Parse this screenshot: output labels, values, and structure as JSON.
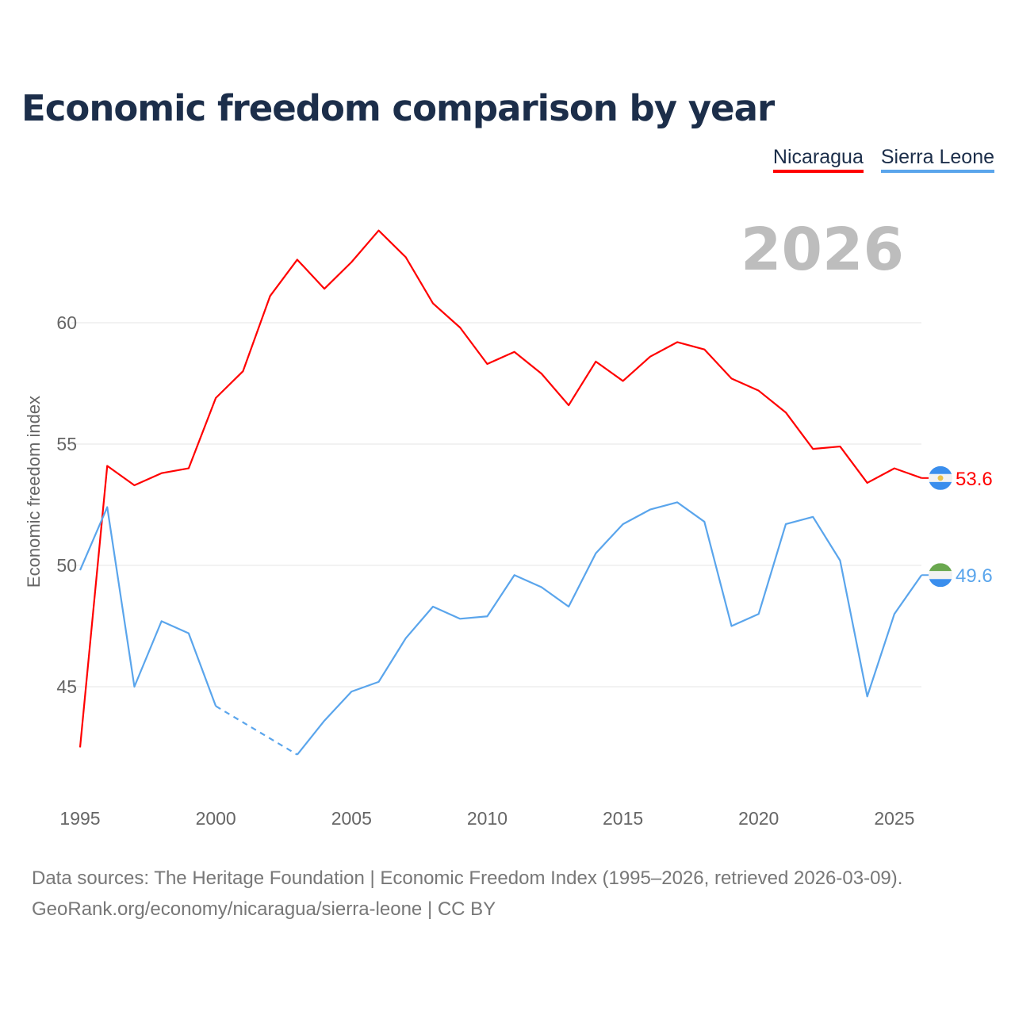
{
  "chart_data": {
    "type": "line",
    "title": "Economic freedom comparison by year",
    "ylabel": "Economic freedom index",
    "xlabel": "",
    "year_label": "2026",
    "x": [
      1995,
      1996,
      1997,
      1998,
      1999,
      2000,
      2001,
      2002,
      2003,
      2004,
      2005,
      2006,
      2007,
      2008,
      2009,
      2010,
      2011,
      2012,
      2013,
      2014,
      2015,
      2016,
      2017,
      2018,
      2019,
      2020,
      2021,
      2022,
      2023,
      2024,
      2025,
      2026
    ],
    "xticks": [
      "1995",
      "2000",
      "2005",
      "2010",
      "2015",
      "2020",
      "2025"
    ],
    "yticks": [
      "45",
      "50",
      "55",
      "60"
    ],
    "ylim": [
      40,
      66
    ],
    "xlim": [
      1995,
      2026
    ],
    "grid": true,
    "legend_placement": "top-right",
    "series": [
      {
        "name": "Nicaragua",
        "color": "#ff0000",
        "end_label": "53.6",
        "values": [
          42.5,
          54.1,
          53.3,
          53.8,
          54.0,
          56.9,
          58.0,
          61.1,
          62.6,
          61.4,
          62.5,
          63.8,
          62.7,
          60.8,
          59.8,
          58.3,
          58.8,
          57.9,
          56.6,
          58.4,
          57.6,
          58.6,
          59.2,
          58.9,
          57.7,
          57.2,
          56.3,
          54.8,
          54.9,
          53.4,
          54.0,
          53.6
        ]
      },
      {
        "name": "Sierra Leone",
        "color": "#5aa5ec",
        "end_label": "49.6",
        "values": [
          49.8,
          52.4,
          45.0,
          47.7,
          47.2,
          44.2,
          null,
          null,
          42.2,
          43.6,
          44.8,
          45.2,
          47.0,
          48.3,
          47.8,
          47.9,
          49.6,
          49.1,
          48.3,
          50.5,
          51.7,
          52.3,
          52.6,
          51.8,
          47.5,
          48.0,
          51.7,
          52.0,
          50.2,
          44.6,
          48.0,
          49.6
        ]
      }
    ]
  },
  "source": {
    "line1": "Data sources: The Heritage Foundation | Economic Freedom Index (1995–2026, retrieved 2026-03-09).",
    "line2": "GeoRank.org/economy/nicaragua/sierra-leone | CC BY"
  }
}
